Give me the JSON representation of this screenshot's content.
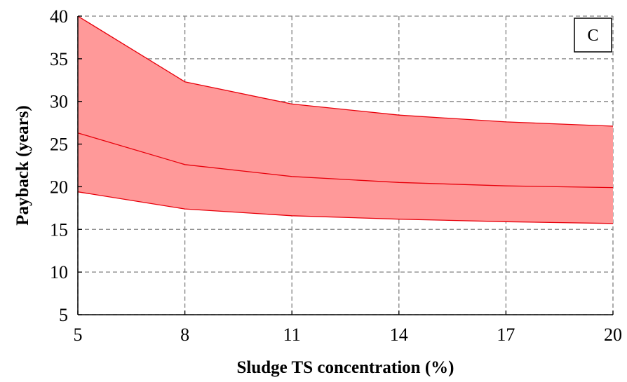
{
  "chart_data": {
    "type": "area",
    "xlabel": "Sludge TS concentration (%)",
    "ylabel": "Payback (years)",
    "panel_label": "C",
    "xlim": [
      5,
      20
    ],
    "ylim": [
      5,
      40
    ],
    "x_ticks": [
      "5",
      "8",
      "11",
      "14",
      "17",
      "20"
    ],
    "y_ticks": [
      "5",
      "10",
      "15",
      "20",
      "25",
      "30",
      "35",
      "40"
    ],
    "grid": true,
    "band_color": "#ff9999",
    "line_color": "#e8000b",
    "x": [
      5,
      8,
      11,
      14,
      17,
      20
    ],
    "series": [
      {
        "role": "upper",
        "values": [
          40.0,
          32.3,
          29.7,
          28.4,
          27.6,
          27.1
        ]
      },
      {
        "role": "middle",
        "values": [
          26.3,
          22.6,
          21.2,
          20.5,
          20.1,
          19.9
        ]
      },
      {
        "role": "lower",
        "values": [
          19.4,
          17.4,
          16.6,
          16.2,
          15.9,
          15.7
        ]
      }
    ]
  }
}
